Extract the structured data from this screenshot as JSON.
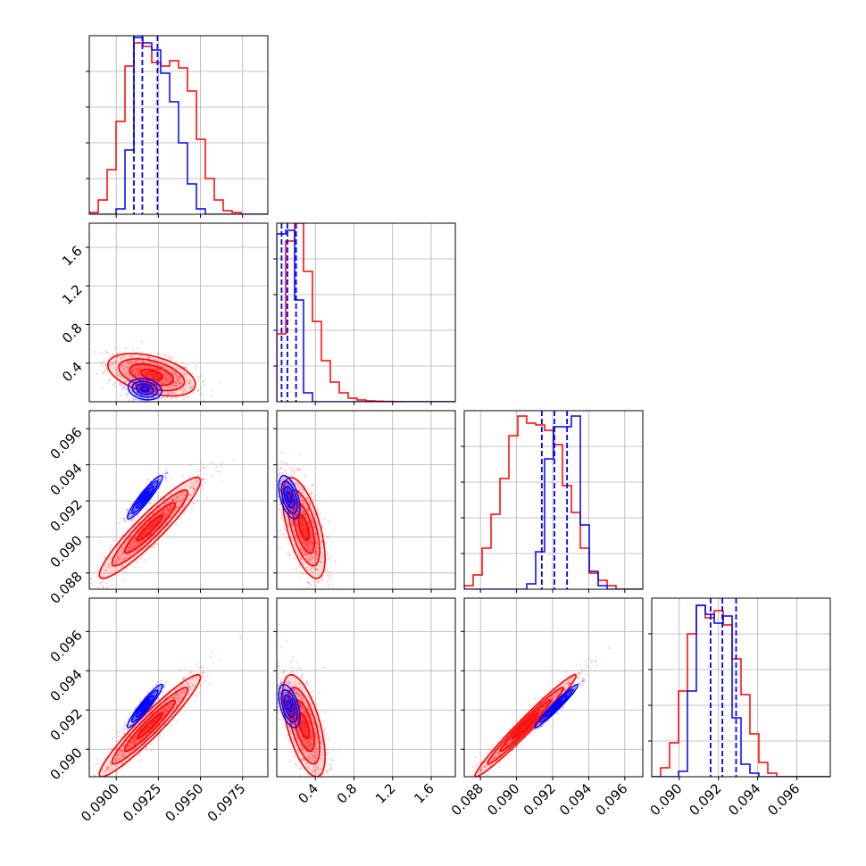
{
  "chart_data": {
    "type": "corner",
    "colors": {
      "posterior_a": "#0000ff",
      "posterior_b": "#ff0000",
      "grid": "#b0b0b0"
    },
    "grid": true,
    "parameters": [
      {
        "label": "",
        "range": [
          0.0884,
          0.099
        ],
        "ticks": [
          0.09,
          0.0925,
          0.095,
          0.0975
        ],
        "tick_labels": [
          "0.0900",
          "0.0925",
          "0.0950",
          "0.0975"
        ]
      },
      {
        "label": "",
        "range": [
          0.0,
          1.85
        ],
        "ticks": [
          0.4,
          0.8,
          1.2,
          1.6
        ],
        "tick_labels": [
          "0.4",
          "0.8",
          "1.2",
          "1.6"
        ]
      },
      {
        "label": "",
        "range": [
          0.0871,
          0.097
        ],
        "ticks": [
          0.088,
          0.09,
          0.092,
          0.094,
          0.096
        ],
        "tick_labels": [
          "0.088",
          "0.090",
          "0.092",
          "0.094",
          "0.096"
        ]
      },
      {
        "label": "",
        "range": [
          0.0886,
          0.0977
        ],
        "ticks": [
          0.09,
          0.092,
          0.094,
          0.096
        ],
        "tick_labels": [
          "0.090",
          "0.092",
          "0.094",
          "0.096"
        ]
      }
    ],
    "histograms": [
      {
        "param": 0,
        "bin_start": 0.0884,
        "bin_width": 0.00053,
        "red": [
          0.01,
          0.08,
          0.25,
          0.52,
          0.83,
          0.96,
          0.94,
          0.85,
          0.83,
          0.86,
          0.82,
          0.69,
          0.42,
          0.2,
          0.08,
          0.02,
          0.01,
          0.0,
          0.0,
          0.0
        ],
        "blue": [
          0.0,
          0.0,
          0.0,
          0.03,
          0.36,
          0.99,
          0.96,
          0.92,
          0.79,
          0.63,
          0.4,
          0.17,
          0.03,
          0.0,
          0.0,
          0.0,
          0.0,
          0.0,
          0.0,
          0.0
        ],
        "quantiles_blue": [
          0.09105,
          0.09155,
          0.09245
        ]
      },
      {
        "param": 1,
        "bin_start": 0.0,
        "bin_width": 0.0925,
        "red": [
          0.38,
          0.9,
          1.0,
          0.73,
          0.45,
          0.23,
          0.11,
          0.05,
          0.02,
          0.01,
          0.005,
          0.003,
          0.002,
          0.001,
          0.0,
          0.0,
          0.0,
          0.0,
          0.0,
          0.0
        ],
        "blue": [
          0.94,
          0.96,
          0.57,
          0.05,
          0.0,
          0.0,
          0.0,
          0.0,
          0.0,
          0.0,
          0.0,
          0.0,
          0.0,
          0.0,
          0.0,
          0.0,
          0.0,
          0.0,
          0.0,
          0.0
        ],
        "quantiles_blue": [
          0.05,
          0.11,
          0.2
        ]
      },
      {
        "param": 2,
        "bin_start": 0.0871,
        "bin_width": 0.000495,
        "red": [
          0.02,
          0.08,
          0.23,
          0.42,
          0.62,
          0.86,
          0.97,
          0.93,
          0.92,
          0.89,
          0.81,
          0.58,
          0.43,
          0.23,
          0.09,
          0.05,
          0.02,
          0.0,
          0.0,
          0.0
        ],
        "blue": [
          0.0,
          0.0,
          0.0,
          0.0,
          0.0,
          0.0,
          0.0,
          0.03,
          0.21,
          0.73,
          0.91,
          0.91,
          0.97,
          0.36,
          0.1,
          0.02,
          0.0,
          0.0,
          0.0,
          0.0
        ],
        "quantiles_blue": [
          0.0914,
          0.0921,
          0.0928
        ]
      },
      {
        "param": 3,
        "bin_start": 0.0886,
        "bin_width": 0.000455,
        "red": [
          0.0,
          0.05,
          0.19,
          0.48,
          0.8,
          0.96,
          0.89,
          0.93,
          0.85,
          0.66,
          0.46,
          0.24,
          0.08,
          0.02,
          0.0,
          0.0,
          0.0,
          0.0,
          0.0,
          0.0
        ],
        "blue": [
          0.0,
          0.0,
          0.0,
          0.03,
          0.48,
          0.96,
          0.91,
          0.86,
          0.9,
          0.33,
          0.07,
          0.02,
          0.0,
          0.0,
          0.0,
          0.0,
          0.0,
          0.0,
          0.0,
          0.0
        ],
        "quantiles_blue": [
          0.0916,
          0.0922,
          0.0929
        ]
      }
    ],
    "posteriors_2d": [
      {
        "x_param": 0,
        "y_param": 1,
        "red": {
          "mean": [
            0.0921,
            0.28
          ],
          "sd": [
            0.0013,
            0.11
          ],
          "corr": -0.45
        },
        "blue": {
          "mean": [
            0.0917,
            0.13
          ],
          "sd": [
            0.0005,
            0.055
          ],
          "corr": -0.2
        }
      },
      {
        "x_param": 0,
        "y_param": 2,
        "red": {
          "mean": [
            0.092,
            0.0905
          ],
          "sd": [
            0.0015,
            0.0014
          ],
          "corr": 0.93
        },
        "blue": {
          "mean": [
            0.0917,
            0.0922
          ],
          "sd": [
            0.00052,
            0.0006
          ],
          "corr": 0.93
        }
      },
      {
        "x_param": 1,
        "y_param": 2,
        "red": {
          "mean": [
            0.28,
            0.0905
          ],
          "sd": [
            0.11,
            0.0014
          ],
          "corr": -0.6
        },
        "blue": {
          "mean": [
            0.13,
            0.0922
          ],
          "sd": [
            0.055,
            0.0006
          ],
          "corr": -0.5
        }
      },
      {
        "x_param": 0,
        "y_param": 3,
        "red": {
          "mean": [
            0.092,
            0.0912
          ],
          "sd": [
            0.0015,
            0.0013
          ],
          "corr": 0.95
        },
        "blue": {
          "mean": [
            0.0917,
            0.0922
          ],
          "sd": [
            0.00052,
            0.00055
          ],
          "corr": 0.94
        }
      },
      {
        "x_param": 1,
        "y_param": 3,
        "red": {
          "mean": [
            0.28,
            0.0912
          ],
          "sd": [
            0.11,
            0.0013
          ],
          "corr": -0.6
        },
        "blue": {
          "mean": [
            0.13,
            0.0922
          ],
          "sd": [
            0.055,
            0.00055
          ],
          "corr": -0.5
        }
      },
      {
        "x_param": 2,
        "y_param": 3,
        "red": {
          "mean": [
            0.0905,
            0.0912
          ],
          "sd": [
            0.0014,
            0.0013
          ],
          "corr": 0.98
        },
        "blue": {
          "mean": [
            0.0922,
            0.0922
          ],
          "sd": [
            0.0006,
            0.00055
          ],
          "corr": 0.97
        }
      }
    ],
    "contour_levels_sigma": [
      0.5,
      1.0,
      1.5,
      2.0
    ]
  }
}
